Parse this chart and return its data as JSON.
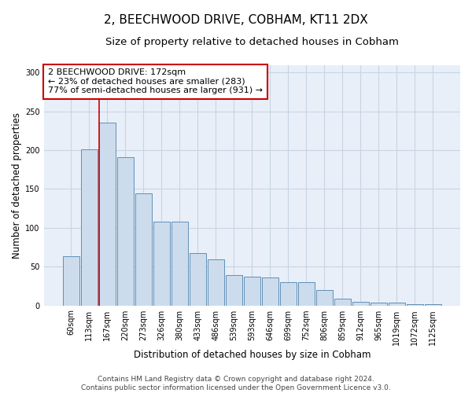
{
  "title_line1": "2, BEECHWOOD DRIVE, COBHAM, KT11 2DX",
  "title_line2": "Size of property relative to detached houses in Cobham",
  "xlabel": "Distribution of detached houses by size in Cobham",
  "ylabel": "Number of detached properties",
  "categories": [
    "60sqm",
    "113sqm",
    "167sqm",
    "220sqm",
    "273sqm",
    "326sqm",
    "380sqm",
    "433sqm",
    "486sqm",
    "539sqm",
    "593sqm",
    "646sqm",
    "699sqm",
    "752sqm",
    "806sqm",
    "859sqm",
    "912sqm",
    "965sqm",
    "1019sqm",
    "1072sqm",
    "1125sqm"
  ],
  "values": [
    63,
    201,
    236,
    191,
    144,
    108,
    108,
    67,
    59,
    39,
    37,
    36,
    30,
    30,
    20,
    9,
    5,
    4,
    4,
    2,
    2
  ],
  "bar_color": "#ccdcec",
  "bar_edge_color": "#6090b8",
  "vline_color": "#cc0000",
  "annotation_box_text": "2 BEECHWOOD DRIVE: 172sqm\n← 23% of detached houses are smaller (283)\n77% of semi-detached houses are larger (931) →",
  "annotation_box_color": "#cc0000",
  "annotation_box_bg": "#ffffff",
  "ylim": [
    0,
    310
  ],
  "yticks": [
    0,
    50,
    100,
    150,
    200,
    250,
    300
  ],
  "grid_color": "#c8d4e4",
  "background_color": "#e8eff8",
  "footer_line1": "Contains HM Land Registry data © Crown copyright and database right 2024.",
  "footer_line2": "Contains public sector information licensed under the Open Government Licence v3.0.",
  "title_fontsize": 11,
  "subtitle_fontsize": 9.5,
  "axis_label_fontsize": 8.5,
  "tick_fontsize": 7,
  "annotation_fontsize": 8,
  "footer_fontsize": 6.5
}
